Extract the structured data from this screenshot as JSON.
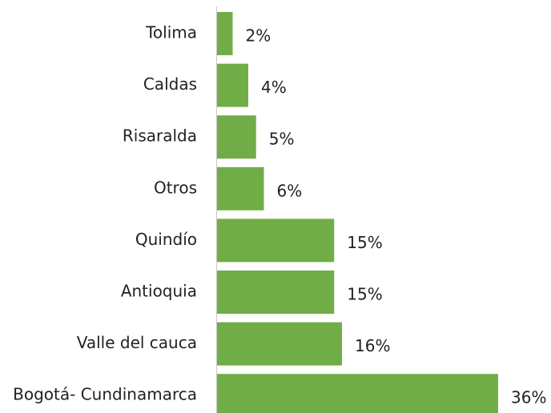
{
  "chart_data": {
    "type": "bar",
    "orientation": "horizontal",
    "categories": [
      "Tolima",
      "Caldas",
      "Risaralda",
      "Otros",
      "Quindío",
      "Antioquia",
      "Valle del cauca",
      "Bogotá- Cundinamarca"
    ],
    "values": [
      2,
      4,
      5,
      6,
      15,
      15,
      16,
      36
    ],
    "value_labels": [
      "2%",
      "4%",
      "5%",
      "6%",
      "15%",
      "15%",
      "16%",
      "36%"
    ],
    "color": "#70ad47"
  }
}
